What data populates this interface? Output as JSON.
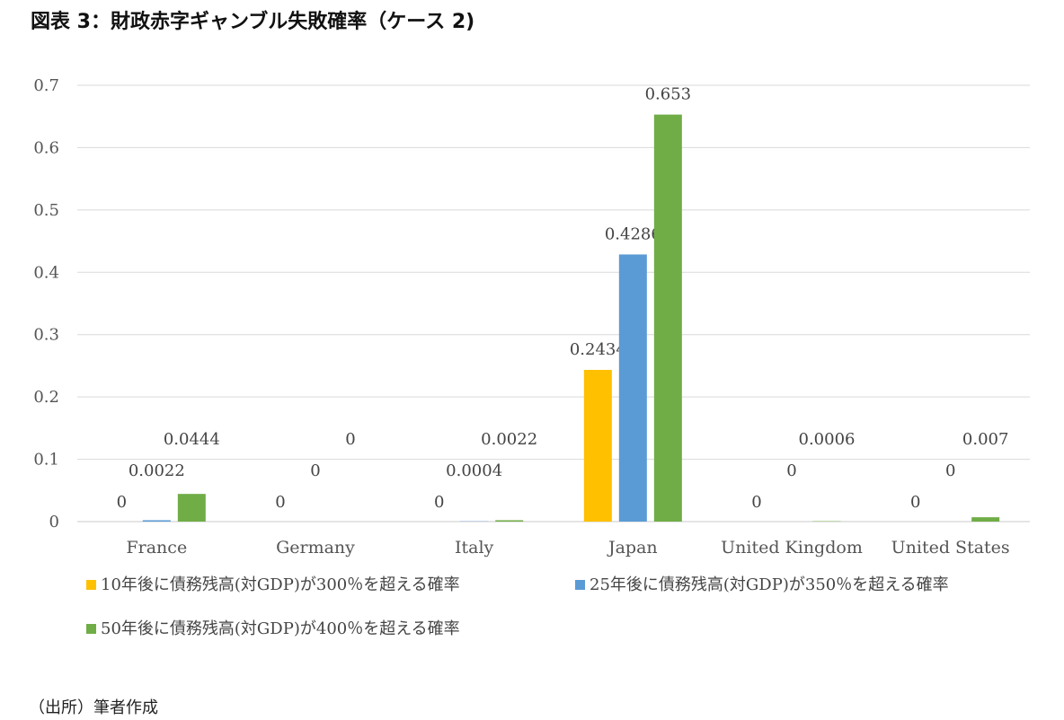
{
  "title": "図表 3：財政赤字ギャンブル失敗確率（ケース 2)",
  "source": "（出所）筆者作成",
  "chart_data": {
    "type": "bar",
    "categories": [
      "France",
      "Germany",
      "Italy",
      "Japan",
      "United Kingdom",
      "United States"
    ],
    "ylim": [
      0,
      0.7
    ],
    "yticks": [
      "0",
      "0.1",
      "0.2",
      "0.3",
      "0.4",
      "0.5",
      "0.6",
      "0.7"
    ],
    "grid": true,
    "legend_position": "bottom",
    "series": [
      {
        "name": "10年後に債務残高(対GDP)が300％を超える確率",
        "color": "#FFC000",
        "values": [
          0,
          0,
          0,
          0.2434,
          0,
          0
        ],
        "labels": [
          "0",
          "0",
          "0",
          "0.2434",
          "0",
          "0"
        ]
      },
      {
        "name": "25年後に債務残高(対GDP)が350％を超える確率",
        "color": "#5B9BD5",
        "values": [
          0.0022,
          0,
          0.0004,
          0.4286,
          0,
          0
        ],
        "labels": [
          "0.0022",
          "0",
          "0.0004",
          "0.4286",
          "0",
          "0"
        ]
      },
      {
        "name": "50年後に債務残高(対GDP)が400％を超える確率",
        "color": "#70AD47",
        "values": [
          0.0444,
          0,
          0.0022,
          0.653,
          0.0006,
          0.007
        ],
        "labels": [
          "0.0444",
          "0",
          "0.0022",
          "0.653",
          "0.0006",
          "0.007"
        ]
      }
    ]
  }
}
